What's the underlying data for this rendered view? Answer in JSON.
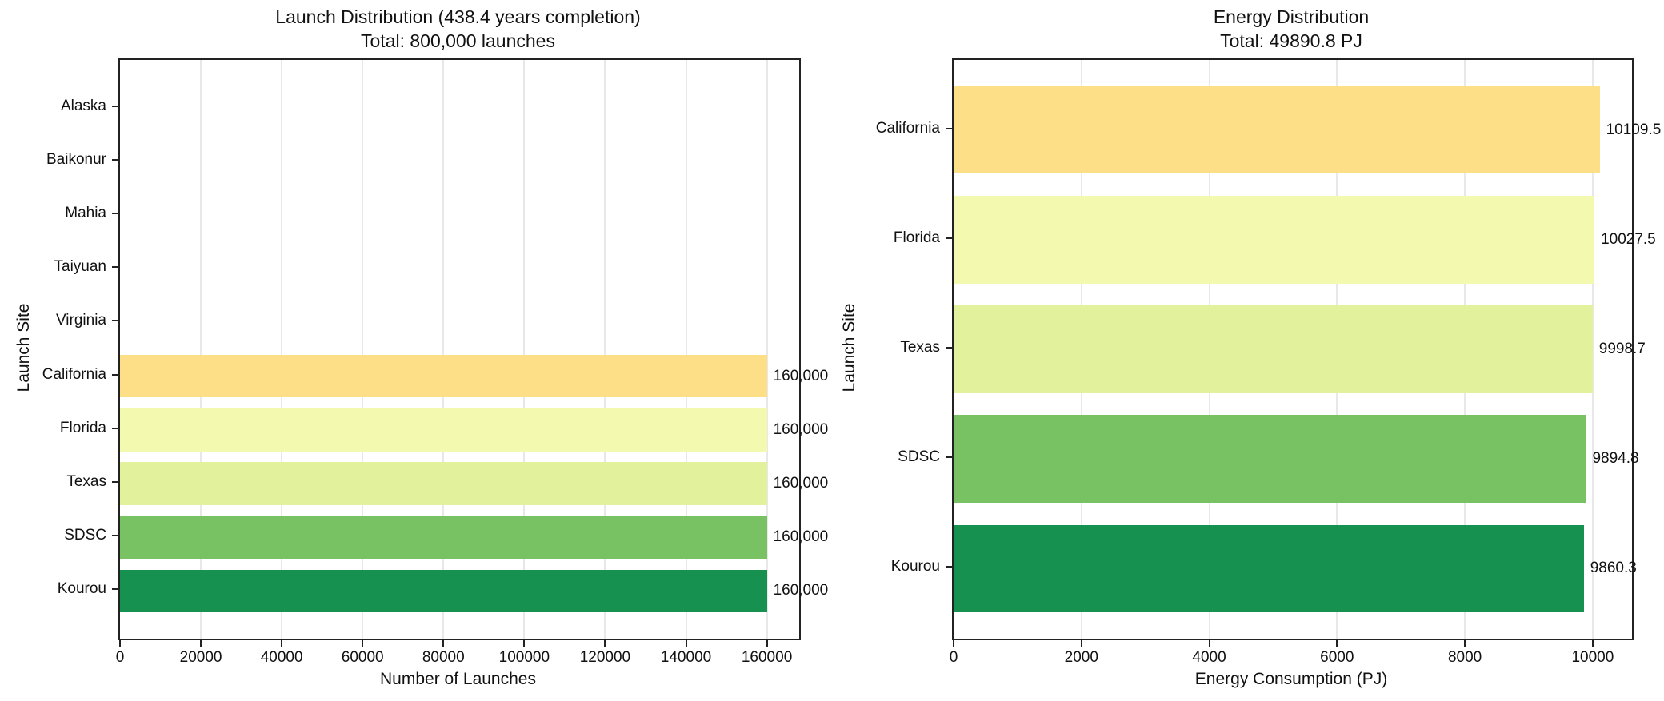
{
  "chart_data": [
    {
      "type": "bar",
      "orientation": "horizontal",
      "title": "Launch Distribution (438.4 years completion)",
      "subtitle": "Total: 800,000 launches",
      "xlabel": "Number of Launches",
      "ylabel": "Launch Site",
      "categories": [
        "Alaska",
        "Baikonur",
        "Mahia",
        "Taiyuan",
        "Virginia",
        "California",
        "Florida",
        "Texas",
        "SDSC",
        "Kourou"
      ],
      "values": [
        0,
        0,
        0,
        0,
        0,
        160000,
        160000,
        160000,
        160000,
        160000
      ],
      "value_labels": [
        "",
        "",
        "",
        "",
        "",
        "160,000",
        "160,000",
        "160,000",
        "160,000",
        "160,000"
      ],
      "bar_colors": [
        "",
        "",
        "",
        "",
        "",
        "#fcdf86",
        "#f4f9b0",
        "#e2f19b",
        "#78c263",
        "#17914f"
      ],
      "xlim": [
        0,
        168000
      ],
      "xticks": [
        0,
        20000,
        40000,
        60000,
        80000,
        100000,
        120000,
        140000,
        160000
      ],
      "xtick_labels": [
        "0",
        "20000",
        "40000",
        "60000",
        "80000",
        "100000",
        "120000",
        "140000",
        "160000"
      ],
      "grid": true,
      "legend": "none"
    },
    {
      "type": "bar",
      "orientation": "horizontal",
      "title": "Energy Distribution",
      "subtitle": "Total: 49890.8 PJ",
      "xlabel": "Energy Consumption (PJ)",
      "ylabel": "Launch Site",
      "categories": [
        "California",
        "Florida",
        "Texas",
        "SDSC",
        "Kourou"
      ],
      "values": [
        10109.5,
        10027.5,
        9998.7,
        9894.8,
        9860.3
      ],
      "value_labels": [
        "10109.5",
        "10027.5",
        "9998.7",
        "9894.8",
        "9860.3"
      ],
      "bar_colors": [
        "#fcdf86",
        "#f4f9b0",
        "#e2f19b",
        "#78c263",
        "#17914f"
      ],
      "xlim": [
        0,
        10615
      ],
      "xticks": [
        0,
        2000,
        4000,
        6000,
        8000,
        10000
      ],
      "xtick_labels": [
        "0",
        "2000",
        "4000",
        "6000",
        "8000",
        "10000"
      ],
      "grid": true,
      "legend": "none"
    }
  ],
  "colors": {
    "spine": "#222222",
    "gridline": "#e8e8e8",
    "text": "#111111",
    "background": "#ffffff"
  }
}
